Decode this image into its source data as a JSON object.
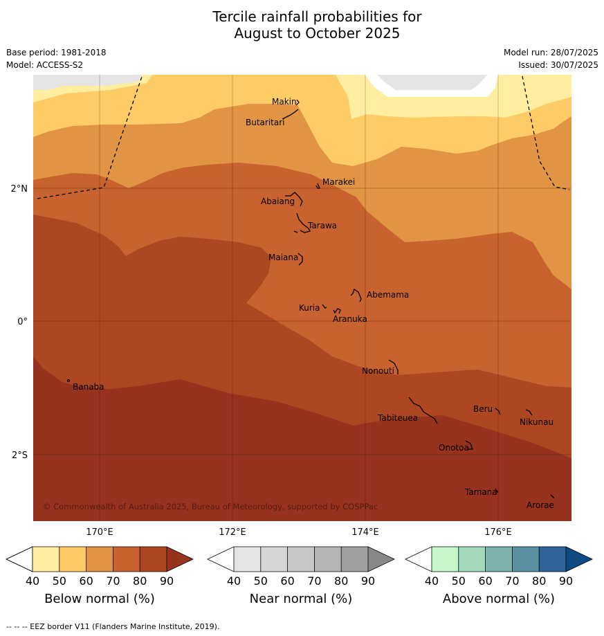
{
  "title_line1": "Tercile rainfall probabilities for",
  "title_line2": "August to October 2025",
  "meta": {
    "base_period": "Base period: 1981-2018",
    "model": "Model: ACCESS-S2",
    "model_run": "Model run: 28/07/2025",
    "issued": "Issued: 30/07/2025"
  },
  "map": {
    "lon_ticks": [
      "170°E",
      "172°E",
      "174°E",
      "176°E"
    ],
    "lat_ticks": [
      "2°N",
      "0°",
      "2°S"
    ],
    "copyright": "© Commonwealth of Australia 2025, Bureau of Meteorology, supported by COSPPac",
    "places": [
      "Makin",
      "Butaritari",
      "Marakei",
      "Abaiang",
      "Tarawa",
      "Maiana",
      "Abemama",
      "Kuria",
      "Aranuka",
      "Nonouti",
      "Banaba",
      "Beru",
      "Nikunau",
      "Tabiteuea",
      "Onotoa",
      "Tamana",
      "Arorae"
    ],
    "colors": {
      "below_40_50": "#ffeda0",
      "below_50_60": "#fecc66",
      "below_60_70": "#e09444",
      "below_70_80": "#c8622e",
      "below_80_90": "#ad4722",
      "below_90": "#97321e",
      "near_normal_grey": "#e5e5e5"
    }
  },
  "legends": [
    {
      "label": "Below normal (%)",
      "ticks": [
        "40",
        "50",
        "60",
        "70",
        "80",
        "90"
      ],
      "colors": [
        "#ffffff",
        "#ffeda0",
        "#fecc66",
        "#e09444",
        "#c8622e",
        "#ad4722",
        "#97321e"
      ]
    },
    {
      "label": "Near normal (%)",
      "ticks": [
        "40",
        "50",
        "60",
        "70",
        "80",
        "90"
      ],
      "colors": [
        "#ffffff",
        "#e5e5e5",
        "#d6d6d6",
        "#c7c7c7",
        "#b4b4b4",
        "#a0a0a0",
        "#888888"
      ]
    },
    {
      "label": "Above normal (%)",
      "ticks": [
        "40",
        "50",
        "60",
        "70",
        "80",
        "90"
      ],
      "colors": [
        "#ffffff",
        "#c7f6cb",
        "#a4d8bc",
        "#7db2ad",
        "#5b8fa2",
        "#30639a",
        "#0f4b83"
      ]
    }
  ],
  "footer": "--  --  -- EEZ border V11 (Flanders Marine Institute, 2019)."
}
